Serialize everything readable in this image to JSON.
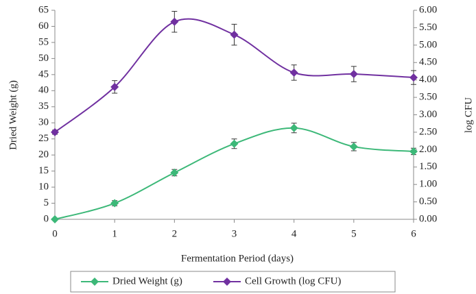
{
  "chart_data": {
    "type": "line",
    "x_label": "Fermentation Period (days)",
    "y_label": "Dried Weight (g)",
    "y2_label": "log CFU",
    "x": [
      0,
      1,
      2,
      3,
      4,
      5,
      6
    ],
    "xlim": [
      0,
      6
    ],
    "xticks": [
      0,
      1,
      2,
      3,
      4,
      5,
      6
    ],
    "ylim": [
      0,
      65
    ],
    "yticks": [
      0,
      5,
      10,
      15,
      20,
      25,
      30,
      35,
      40,
      45,
      50,
      55,
      60,
      65
    ],
    "y2lim": [
      0,
      6
    ],
    "y2ticks": [
      {
        "value": 0,
        "label": "0.00"
      },
      {
        "value": 0.5,
        "label": "0.50"
      },
      {
        "value": 1,
        "label": "1.00"
      },
      {
        "value": 1.5,
        "label": "1.50"
      },
      {
        "value": 2,
        "label": "2.00"
      },
      {
        "value": 2.5,
        "label": "2.50"
      },
      {
        "value": 3,
        "label": "3.00"
      },
      {
        "value": 3.5,
        "label": "3.50"
      },
      {
        "value": 4,
        "label": "4.00"
      },
      {
        "value": 4.5,
        "label": "4.50"
      },
      {
        "value": 5,
        "label": "5.00"
      },
      {
        "value": 5.5,
        "label": "5.50"
      },
      {
        "value": 6,
        "label": "6.00"
      }
    ],
    "smooth": true,
    "legend": "bottom",
    "series": [
      {
        "name": "Dried Weight (g)",
        "color": "#3cb878",
        "values": [
          0,
          5,
          14.5,
          23.5,
          28.4,
          22.6,
          21.1
        ],
        "errors": [
          0.3,
          0.8,
          1,
          1.5,
          1.5,
          1.3,
          1
        ]
      },
      {
        "name": "Cell Growth (log CFU)",
        "color": "#7030a0",
        "axis": "y2",
        "values": [
          2.5,
          3.8,
          5.67,
          5.3,
          4.21,
          4.17,
          4.07
        ],
        "errors": [
          0.06,
          0.18,
          0.3,
          0.3,
          0.22,
          0.22,
          0.2
        ]
      }
    ]
  }
}
